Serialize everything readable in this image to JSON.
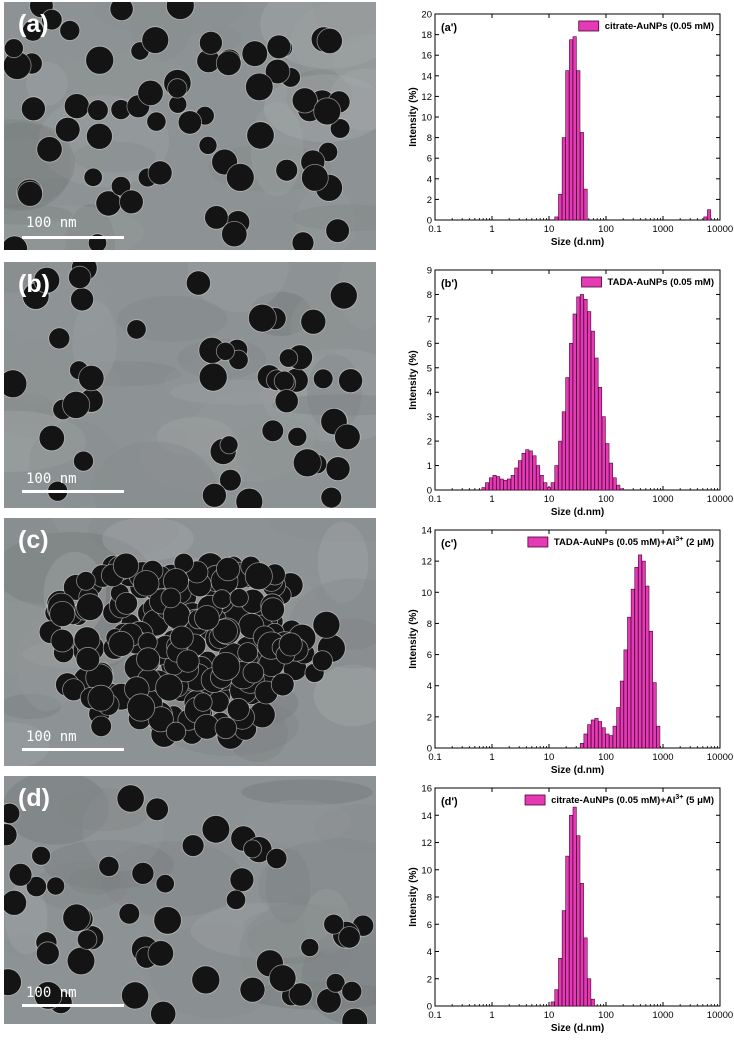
{
  "colors": {
    "bar_fill": "#e43bb5",
    "bar_stroke": "#4a0036",
    "tem_background": "#8d9394",
    "particle": "#141414"
  },
  "tem_panels": [
    {
      "label": "(a)",
      "scale_bar_text": "100 nm"
    },
    {
      "label": "(b)",
      "scale_bar_text": "100 nm"
    },
    {
      "label": "(c)",
      "scale_bar_text": "100 nm"
    },
    {
      "label": "(d)",
      "scale_bar_text": "100 nm"
    }
  ],
  "chart_data": [
    {
      "type": "bar",
      "panel_label": "(a')",
      "legend": {
        "pre": "citrate-AuNPs (0.05 mM)",
        "sup": "",
        "post": ""
      },
      "xlabel": "Size (d.nm)",
      "ylabel": "Intensity (%)",
      "x_scale": "log",
      "xlim": [
        0.1,
        10000
      ],
      "x_ticks": [
        "0.1",
        "1",
        "10",
        "100",
        "1000",
        "10000"
      ],
      "ylim": [
        0,
        20
      ],
      "y_ticks": [
        0,
        2,
        4,
        6,
        8,
        10,
        12,
        14,
        16,
        18,
        20
      ],
      "x": [
        13.5,
        15.7,
        18.2,
        21.0,
        24.4,
        28.2,
        32.7,
        37.8,
        43.8,
        5560,
        6439
      ],
      "values": [
        0.3,
        2.5,
        8.0,
        14.5,
        17.5,
        17.8,
        14.5,
        8.5,
        3.0,
        0.3,
        1.0
      ]
    },
    {
      "type": "bar",
      "panel_label": "(b')",
      "legend": {
        "pre": "TADA-AuNPs (0.05 mM)",
        "sup": "",
        "post": ""
      },
      "xlabel": "Size (d.nm)",
      "ylabel": "Intensity (%)",
      "x_scale": "log",
      "xlim": [
        0.1,
        10000
      ],
      "x_ticks": [
        "0.1",
        "1",
        "10",
        "100",
        "1000",
        "10000"
      ],
      "ylim": [
        0,
        9
      ],
      "y_ticks": [
        0,
        1,
        2,
        3,
        4,
        5,
        6,
        7,
        8,
        9
      ],
      "x": [
        0.71,
        0.82,
        0.96,
        1.11,
        1.28,
        1.48,
        1.72,
        1.99,
        2.31,
        2.67,
        3.09,
        3.58,
        4.15,
        4.8,
        5.56,
        6.44,
        7.46,
        8.63,
        10.0,
        11.6,
        13.5,
        15.7,
        18.2,
        21.0,
        24.4,
        28.2,
        32.7,
        37.8,
        43.8,
        50.7,
        58.8,
        68.1,
        78.8,
        91.3,
        105.7,
        122.4,
        141.8,
        164.2,
        190.1
      ],
      "values": [
        0.1,
        0.3,
        0.5,
        0.6,
        0.55,
        0.45,
        0.4,
        0.45,
        0.6,
        0.9,
        1.2,
        1.5,
        1.65,
        1.6,
        1.4,
        1.0,
        0.6,
        0.3,
        0.1,
        0.3,
        1.0,
        2.0,
        3.2,
        4.6,
        6.0,
        7.2,
        7.9,
        8.0,
        7.8,
        7.3,
        6.5,
        5.4,
        4.2,
        3.0,
        1.9,
        1.1,
        0.5,
        0.2,
        0.05
      ]
    },
    {
      "type": "bar",
      "panel_label": "(c')",
      "legend": {
        "pre": "TADA-AuNPs (0.05 mM)+Al",
        "sup": "3+",
        "post": " (2 μM)"
      },
      "xlabel": "Size (d.nm)",
      "ylabel": "Intensity (%)",
      "x_scale": "log",
      "xlim": [
        0.1,
        10000
      ],
      "x_ticks": [
        "0.1",
        "1",
        "10",
        "100",
        "1000",
        "10000"
      ],
      "ylim": [
        0,
        14
      ],
      "y_ticks": [
        0,
        2,
        4,
        6,
        8,
        10,
        12,
        14
      ],
      "x": [
        37.8,
        43.8,
        50.7,
        58.8,
        68.1,
        78.8,
        91.3,
        105.7,
        122.4,
        141.8,
        164.2,
        190.1,
        220.2,
        255.0,
        295.3,
        342.0,
        396.1,
        458.7,
        531.2,
        615.1,
        712.4,
        825.0
      ],
      "values": [
        0.3,
        0.9,
        1.5,
        1.8,
        1.9,
        1.7,
        1.3,
        0.9,
        0.8,
        1.4,
        2.6,
        4.3,
        6.3,
        8.4,
        10.2,
        11.6,
        12.4,
        12.0,
        10.4,
        7.5,
        4.2,
        1.4
      ]
    },
    {
      "type": "bar",
      "panel_label": "(d')",
      "legend": {
        "pre": "citrate-AuNPs (0.05 mM)+Al",
        "sup": "3+",
        "post": " (5 μM)"
      },
      "xlabel": "Size (d.nm)",
      "ylabel": "Intensity (%)",
      "x_scale": "log",
      "xlim": [
        0.1,
        10000
      ],
      "x_ticks": [
        "0.1",
        "1",
        "10",
        "100",
        "1000",
        "10000"
      ],
      "ylim": [
        0,
        16
      ],
      "y_ticks": [
        0,
        2,
        4,
        6,
        8,
        10,
        12,
        14,
        16
      ],
      "x": [
        11.6,
        13.5,
        15.7,
        18.2,
        21.0,
        24.4,
        28.2,
        32.7,
        37.8,
        43.8,
        50.7,
        58.8
      ],
      "values": [
        0.3,
        1.2,
        3.5,
        7.0,
        11.0,
        14.0,
        14.6,
        12.5,
        9.0,
        5.0,
        2.0,
        0.5
      ]
    }
  ]
}
